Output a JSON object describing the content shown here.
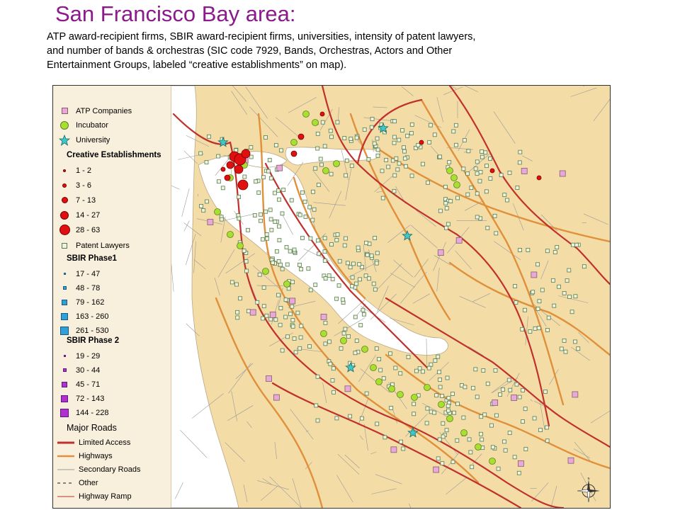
{
  "title": "San Francisco Bay area:",
  "subtitle_lines": [
    "ATP award-recipient firms, SBIR award-recipient firms, universities, intensity of patent lawyers,",
    "and number of bands & orchestras (SIC code 7929, Bands, Orchestras, Actors and Other",
    "Entertainment Groups, labeled “creative establishments” on map)."
  ],
  "colors": {
    "land": "#f3dca6",
    "water": "#ffffff",
    "limited_access": "#c0302c",
    "highway": "#e0903a",
    "secondary": "#9a9a9a",
    "atp": "#e8a8d8",
    "incubator": "#a8e030",
    "university": "#40c8c8",
    "creative": "#e01010",
    "patent": "#8ab080",
    "sbir1": "#30a0d8",
    "sbir2": "#b030d0"
  },
  "legend": {
    "items": [
      {
        "label": "ATP Companies",
        "icon": "atp-square"
      },
      {
        "label": "Incubator",
        "icon": "incubator-circle"
      },
      {
        "label": "University",
        "icon": "university-star"
      }
    ],
    "creative": {
      "heading": "Creative Establishments",
      "classes": [
        "1 - 2",
        "3 - 6",
        "7 - 13",
        "14 - 27",
        "28 - 63"
      ]
    },
    "patent_label": "Patent Lawyers",
    "sbir1": {
      "heading": "SBIR Phase1",
      "classes": [
        "17 - 47",
        "48 - 78",
        "79 - 162",
        "163 - 260",
        "261 - 530"
      ]
    },
    "sbir2": {
      "heading": "SBIR Phase 2",
      "classes": [
        "19 - 29",
        "30 - 44",
        "45 - 71",
        "72 - 143",
        "144 - 228"
      ]
    },
    "roads": {
      "heading": "Major Roads",
      "items": [
        "Limited Access",
        "Highways",
        "Secondary Roads",
        "Other",
        "Highway Ramp"
      ]
    }
  },
  "compass_icon": "compass-rose-icon"
}
